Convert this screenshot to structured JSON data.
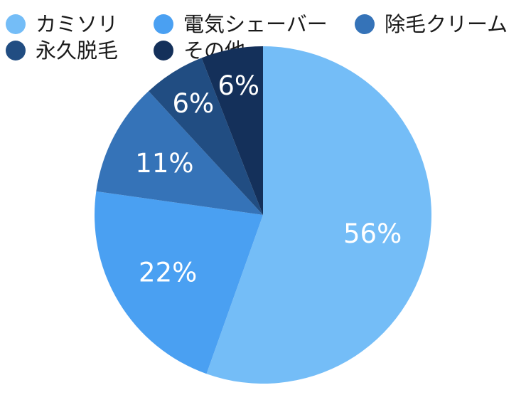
{
  "chart_data": {
    "type": "pie",
    "title": "",
    "categories": [
      "カミソリ",
      "電気シェーバー",
      "除毛クリーム",
      "永久脱毛",
      "その他"
    ],
    "values": [
      56,
      22,
      11,
      6,
      6
    ],
    "value_labels": [
      "56%",
      "22%",
      "11%",
      "6%",
      "6%"
    ],
    "colors": [
      "#74bdf7",
      "#4aa0f2",
      "#3573b8",
      "#214d82",
      "#14305a"
    ],
    "start": "12 o'clock",
    "direction": "clockwise",
    "legend": "top"
  }
}
